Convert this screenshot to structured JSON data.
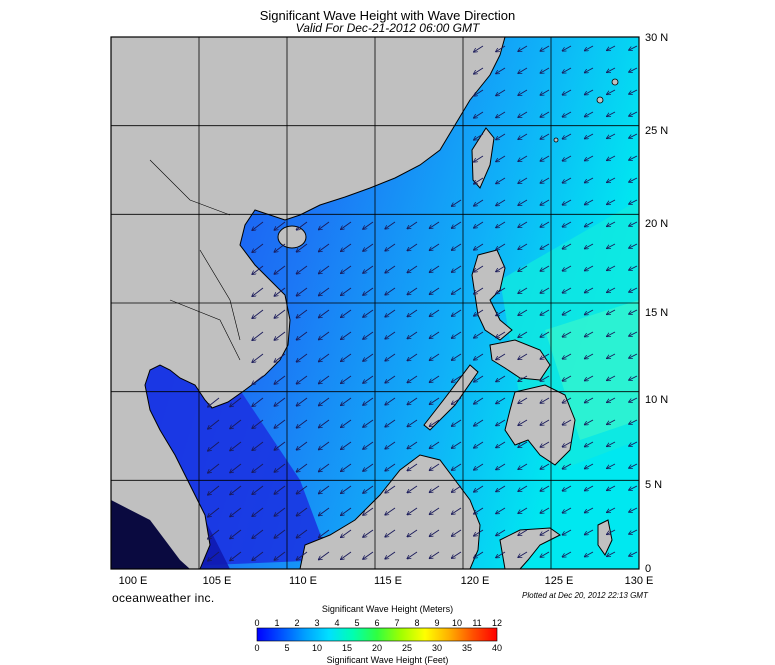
{
  "header": {
    "title": "Significant Wave Height with Wave Direction",
    "subtitle": "Valid For Dec-21-2012 06:00 GMT"
  },
  "axes": {
    "latitude_labels": [
      "30 N",
      "25 N",
      "20 N",
      "15 N",
      "10 N",
      "5 N",
      "0"
    ],
    "longitude_labels": [
      "100 E",
      "105 E",
      "110 E",
      "115 E",
      "120 E",
      "125 E",
      "130 E"
    ]
  },
  "map": {
    "region": "South China Sea",
    "lon_range": [
      100,
      130
    ],
    "lat_range": [
      0,
      30
    ],
    "grid": true,
    "arrow_direction": "southwest",
    "colors": {
      "land": "#c0c0c0",
      "coast": "#000000"
    }
  },
  "footer": {
    "brand": "oceanweather inc.",
    "plotted": "Plotted at Dec 20, 2012 22:13 GMT"
  },
  "colorbar": {
    "title_meters": "Significant Wave Height (Meters)",
    "title_feet": "Significant Wave Height (Feet)",
    "meter_ticks": [
      "0",
      "1",
      "2",
      "3",
      "4",
      "5",
      "6",
      "7",
      "8",
      "9",
      "10",
      "11",
      "12"
    ],
    "feet_ticks": [
      "0",
      "5",
      "10",
      "15",
      "20",
      "25",
      "30",
      "35",
      "40"
    ],
    "gradient": [
      "#0000ff",
      "#0050ff",
      "#00a0ff",
      "#00e0ff",
      "#00ffb0",
      "#30ff40",
      "#a0ff00",
      "#ffff00",
      "#ffb000",
      "#ff5000",
      "#ff0000"
    ]
  }
}
